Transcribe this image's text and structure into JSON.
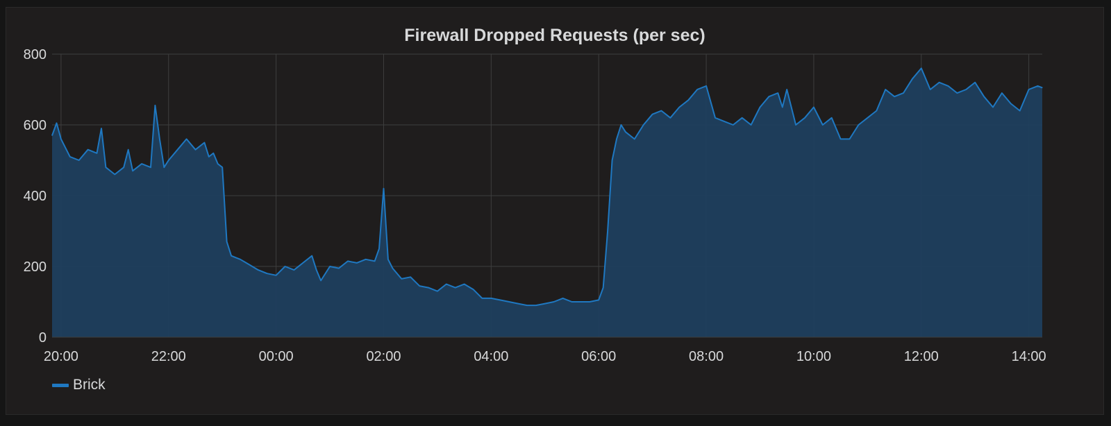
{
  "panel": {
    "title": "Firewall Dropped Requests (per sec)"
  },
  "colors": {
    "background": "#1f1d1d",
    "grid": "#3e3e3e",
    "line": "#1f78c1",
    "fill": "#1f3f5e",
    "text": "#d8d9da"
  },
  "chart_data": {
    "type": "area",
    "title": "Firewall Dropped Requests (per sec)",
    "xlabel": "",
    "ylabel": "",
    "x_ticks": [
      "20:00",
      "22:00",
      "00:00",
      "02:00",
      "04:00",
      "06:00",
      "08:00",
      "10:00",
      "12:00",
      "14:00"
    ],
    "y_ticks": [
      0,
      200,
      400,
      600,
      800
    ],
    "xlim": [
      "19:50",
      "14:15"
    ],
    "ylim": [
      0,
      800
    ],
    "grid": true,
    "legend_position": "bottom-left",
    "series": [
      {
        "name": "Brick",
        "x": [
          "19:50",
          "19:55",
          "20:00",
          "20:10",
          "20:20",
          "20:30",
          "20:40",
          "20:45",
          "20:50",
          "21:00",
          "21:10",
          "21:15",
          "21:20",
          "21:30",
          "21:40",
          "21:45",
          "21:50",
          "21:55",
          "22:00",
          "22:10",
          "22:20",
          "22:30",
          "22:40",
          "22:45",
          "22:50",
          "22:55",
          "23:00",
          "23:05",
          "23:10",
          "23:15",
          "23:20",
          "23:30",
          "23:40",
          "23:50",
          "00:00",
          "00:10",
          "00:20",
          "00:30",
          "00:40",
          "00:45",
          "00:50",
          "01:00",
          "01:10",
          "01:20",
          "01:30",
          "01:40",
          "01:50",
          "01:55",
          "02:00",
          "02:05",
          "02:10",
          "02:20",
          "02:30",
          "02:40",
          "02:50",
          "03:00",
          "03:10",
          "03:20",
          "03:30",
          "03:40",
          "03:50",
          "04:00",
          "04:10",
          "04:20",
          "04:30",
          "04:40",
          "04:50",
          "05:00",
          "05:10",
          "05:20",
          "05:30",
          "05:40",
          "05:50",
          "06:00",
          "06:05",
          "06:10",
          "06:15",
          "06:20",
          "06:25",
          "06:30",
          "06:40",
          "06:50",
          "07:00",
          "07:10",
          "07:20",
          "07:30",
          "07:40",
          "07:50",
          "08:00",
          "08:10",
          "08:20",
          "08:30",
          "08:40",
          "08:50",
          "09:00",
          "09:10",
          "09:20",
          "09:25",
          "09:30",
          "09:40",
          "09:50",
          "10:00",
          "10:10",
          "10:20",
          "10:30",
          "10:40",
          "10:50",
          "11:00",
          "11:10",
          "11:20",
          "11:30",
          "11:40",
          "11:50",
          "12:00",
          "12:10",
          "12:20",
          "12:30",
          "12:40",
          "12:50",
          "13:00",
          "13:10",
          "13:20",
          "13:30",
          "13:40",
          "13:50",
          "14:00",
          "14:10",
          "14:15"
        ],
        "values": [
          570,
          605,
          560,
          510,
          500,
          530,
          520,
          590,
          480,
          460,
          480,
          530,
          470,
          490,
          480,
          655,
          560,
          480,
          500,
          530,
          560,
          530,
          550,
          510,
          520,
          490,
          480,
          270,
          230,
          225,
          220,
          205,
          190,
          180,
          175,
          200,
          190,
          210,
          230,
          190,
          160,
          200,
          195,
          215,
          210,
          220,
          215,
          250,
          420,
          220,
          195,
          165,
          170,
          145,
          140,
          130,
          150,
          140,
          150,
          135,
          110,
          110,
          105,
          100,
          95,
          90,
          90,
          95,
          100,
          110,
          100,
          100,
          100,
          105,
          140,
          300,
          500,
          560,
          600,
          580,
          560,
          600,
          630,
          640,
          620,
          650,
          670,
          700,
          710,
          620,
          610,
          600,
          620,
          600,
          650,
          680,
          690,
          650,
          700,
          600,
          620,
          650,
          600,
          620,
          560,
          560,
          600,
          620,
          640,
          700,
          680,
          690,
          730,
          760,
          700,
          720,
          710,
          690,
          700,
          720,
          680,
          650,
          690,
          660,
          640,
          700,
          710,
          705
        ]
      }
    ]
  }
}
